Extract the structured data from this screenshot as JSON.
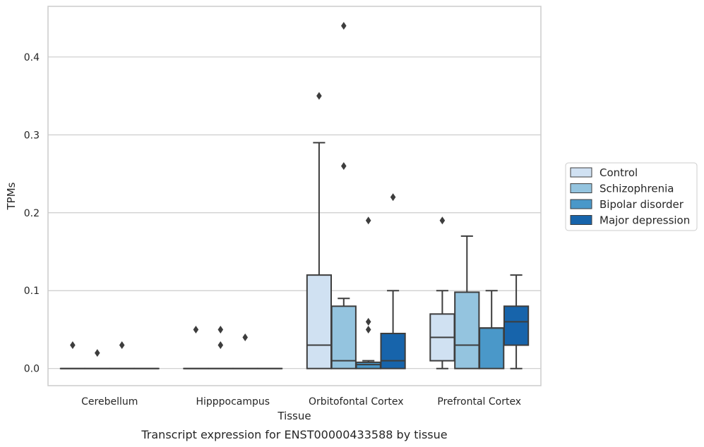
{
  "caption": "Transcript expression for ENST00000433588 by tissue",
  "chart_data": {
    "type": "box",
    "xlabel": "Tissue",
    "ylabel": "TPMs",
    "ylim": [
      -0.022,
      0.465
    ],
    "yticks": [
      0.0,
      0.1,
      0.2,
      0.3,
      0.4
    ],
    "ytick_labels": [
      "0.0",
      "0.1",
      "0.2",
      "0.3",
      "0.4"
    ],
    "grid": "horizontal",
    "legend_position": "right",
    "categories": [
      "Cerebellum",
      "Hipppocampus",
      "Orbitofontal Cortex",
      "Prefrontal Cortex"
    ],
    "series": [
      {
        "name": "Control",
        "color": "#d0e1f2",
        "boxes": [
          {
            "q1": 0,
            "median": 0,
            "q3": 0,
            "whisker_low": 0,
            "whisker_high": 0,
            "outliers": [
              0.03
            ]
          },
          {
            "q1": 0,
            "median": 0,
            "q3": 0,
            "whisker_low": 0,
            "whisker_high": 0,
            "outliers": [
              0.05
            ]
          },
          {
            "q1": 0,
            "median": 0.03,
            "q3": 0.12,
            "whisker_low": 0,
            "whisker_high": 0.29,
            "outliers": [
              0.35
            ]
          },
          {
            "q1": 0.01,
            "median": 0.04,
            "q3": 0.07,
            "whisker_low": 0,
            "whisker_high": 0.1,
            "outliers": [
              0.19
            ]
          }
        ]
      },
      {
        "name": "Schizophrenia",
        "color": "#94c4df",
        "boxes": [
          {
            "q1": 0,
            "median": 0,
            "q3": 0,
            "whisker_low": 0,
            "whisker_high": 0,
            "outliers": [
              0.02
            ]
          },
          {
            "q1": 0,
            "median": 0,
            "q3": 0,
            "whisker_low": 0,
            "whisker_high": 0,
            "outliers": [
              0.05,
              0.03
            ]
          },
          {
            "q1": 0,
            "median": 0.01,
            "q3": 0.08,
            "whisker_low": 0,
            "whisker_high": 0.09,
            "outliers": [
              0.44,
              0.26
            ]
          },
          {
            "q1": 0,
            "median": 0.03,
            "q3": 0.098,
            "whisker_low": 0,
            "whisker_high": 0.17,
            "outliers": []
          }
        ]
      },
      {
        "name": "Bipolar disorder",
        "color": "#4a98c9",
        "boxes": [
          {
            "q1": 0,
            "median": 0,
            "q3": 0,
            "whisker_low": 0,
            "whisker_high": 0,
            "outliers": [
              0.03
            ]
          },
          {
            "q1": 0,
            "median": 0,
            "q3": 0,
            "whisker_low": 0,
            "whisker_high": 0,
            "outliers": [
              0.04
            ]
          },
          {
            "q1": 0,
            "median": 0.005,
            "q3": 0.008,
            "whisker_low": 0,
            "whisker_high": 0.01,
            "outliers": [
              0.19,
              0.06,
              0.05
            ]
          },
          {
            "q1": 0,
            "median": 0.052,
            "q3": 0.052,
            "whisker_low": 0,
            "whisker_high": 0.1,
            "outliers": []
          }
        ]
      },
      {
        "name": "Major depression",
        "color": "#1764ab",
        "boxes": [
          {
            "q1": 0,
            "median": 0,
            "q3": 0,
            "whisker_low": 0,
            "whisker_high": 0,
            "outliers": []
          },
          {
            "q1": 0,
            "median": 0,
            "q3": 0,
            "whisker_low": 0,
            "whisker_high": 0,
            "outliers": []
          },
          {
            "q1": 0,
            "median": 0.01,
            "q3": 0.045,
            "whisker_low": 0,
            "whisker_high": 0.1,
            "outliers": [
              0.22
            ]
          },
          {
            "q1": 0.03,
            "median": 0.06,
            "q3": 0.08,
            "whisker_low": 0,
            "whisker_high": 0.12,
            "outliers": []
          }
        ]
      }
    ]
  }
}
